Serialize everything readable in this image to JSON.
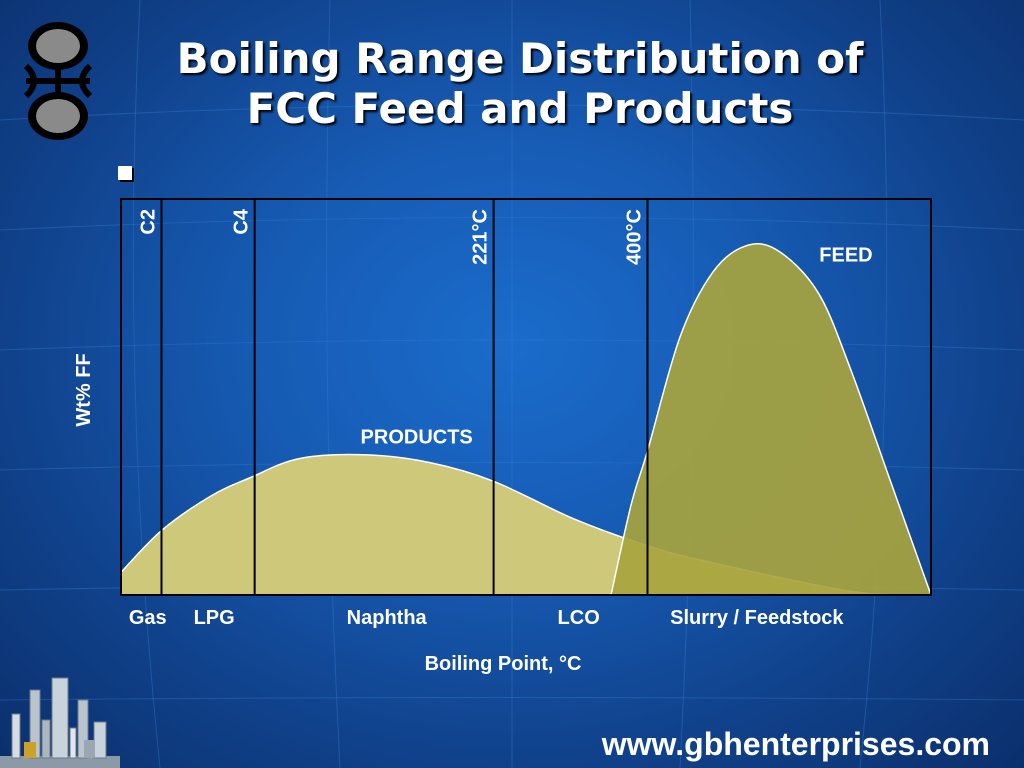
{
  "slide": {
    "title_line1": "Boiling Range Distribution of",
    "title_line2": "FCC Feed and Products",
    "website": "www.gbhenterprises.com",
    "background_color": "#175bb4"
  },
  "logo": {
    "icon": "company-logo-icon"
  },
  "footer_image": {
    "icon": "refinery-illustration-icon"
  },
  "chart_data": {
    "type": "area",
    "ylabel": "Wt% FF",
    "xlabel": "Boiling Point, °C",
    "x_domain": [
      0,
      100
    ],
    "y_domain": [
      0,
      100
    ],
    "grid": false,
    "cut_points": [
      {
        "label": "C2",
        "x": 5
      },
      {
        "label": "C4",
        "x": 16.5
      },
      {
        "label": "221°C",
        "x": 46
      },
      {
        "label": "400°C",
        "x": 65
      }
    ],
    "fraction_labels": [
      {
        "label": "Gas",
        "x": 3.3
      },
      {
        "label": "LPG",
        "x": 11.5
      },
      {
        "label": "Naphtha",
        "x": 32.8
      },
      {
        "label": "LCO",
        "x": 56.5
      },
      {
        "label": "Slurry / Feedstock",
        "x": 78.5
      }
    ],
    "series": [
      {
        "name": "PRODUCTS",
        "color": "#cdc87a",
        "x": [
          0,
          5,
          11,
          16,
          22,
          30,
          38,
          46,
          56,
          65,
          72,
          90,
          100
        ],
        "y": [
          6,
          17,
          26,
          31,
          36,
          37,
          35,
          30,
          20,
          13,
          9,
          1,
          0
        ]
      },
      {
        "name": "FEED",
        "color": "#a8a43e",
        "x": [
          60.5,
          63,
          65,
          69,
          73,
          77,
          81,
          86,
          90,
          95,
          100
        ],
        "y": [
          0,
          24,
          38,
          68,
          85,
          92,
          91,
          80,
          60,
          30,
          0
        ]
      }
    ]
  }
}
